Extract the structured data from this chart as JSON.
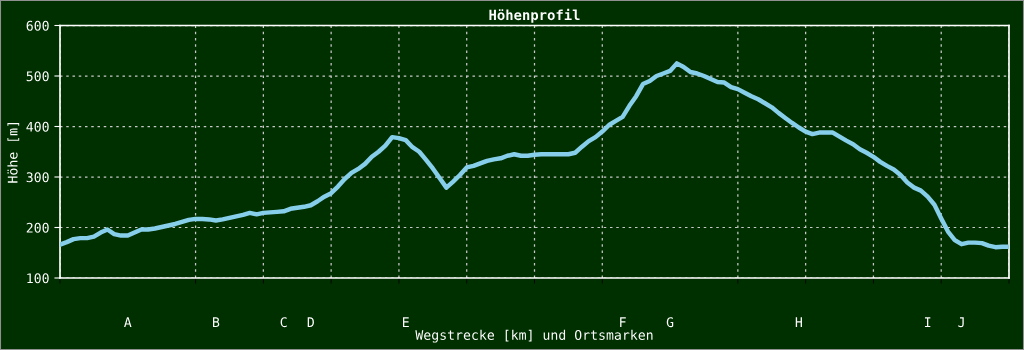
{
  "chart_data": {
    "type": "line",
    "title": "Höhenprofil",
    "xlabel": "Wegstrecke [km] und Ortsmarken",
    "ylabel": "Höhe [m]",
    "categories": [
      null,
      null,
      null,
      null,
      null,
      null,
      null,
      null,
      null,
      null,
      "A",
      null,
      null,
      null,
      null,
      null,
      null,
      null,
      null,
      null,
      null,
      null,
      null,
      "B",
      null,
      null,
      null,
      null,
      null,
      null,
      null,
      null,
      null,
      "C",
      null,
      null,
      null,
      "D",
      null,
      null,
      null,
      null,
      null,
      null,
      null,
      null,
      null,
      null,
      null,
      null,
      null,
      "E",
      null,
      null,
      null,
      null,
      null,
      null,
      null,
      null,
      null,
      null,
      null,
      null,
      null,
      null,
      null,
      null,
      null,
      null,
      null,
      null,
      null,
      null,
      null,
      null,
      null,
      null,
      null,
      null,
      null,
      null,
      null,
      "F",
      null,
      null,
      null,
      null,
      null,
      null,
      "G",
      null,
      null,
      null,
      null,
      null,
      null,
      null,
      null,
      null,
      null,
      null,
      null,
      null,
      null,
      null,
      null,
      null,
      null,
      "H",
      null,
      null,
      null,
      null,
      null,
      null,
      null,
      null,
      null,
      null,
      null,
      null,
      null,
      null,
      null,
      null,
      null,
      null,
      "I",
      null,
      null,
      null,
      null,
      "J",
      null,
      null,
      null,
      null,
      null,
      null,
      null
    ],
    "series": [
      {
        "color": "#87ceeb",
        "values": [
          166,
          171,
          177,
          179,
          179,
          182,
          190,
          196,
          187,
          184,
          184,
          190,
          196,
          196,
          198,
          201,
          204,
          207,
          211,
          215,
          217,
          217,
          216,
          214,
          216,
          219,
          222,
          225,
          229,
          226,
          229,
          230,
          231,
          232,
          237,
          239,
          241,
          244,
          252,
          261,
          268,
          281,
          296,
          308,
          316,
          326,
          340,
          350,
          362,
          379,
          377,
          373,
          359,
          350,
          334,
          317,
          298,
          279,
          291,
          304,
          319,
          322,
          327,
          332,
          335,
          337,
          342,
          345,
          342,
          342,
          344,
          345,
          345,
          345,
          345,
          345,
          348,
          360,
          371,
          379,
          390,
          403,
          411,
          419,
          441,
          460,
          484,
          490,
          500,
          505,
          510,
          525,
          518,
          508,
          505,
          500,
          494,
          488,
          487,
          478,
          474,
          467,
          460,
          454,
          446,
          438,
          427,
          417,
          407,
          398,
          390,
          385,
          388,
          388,
          388,
          380,
          372,
          365,
          355,
          348,
          340,
          330,
          322,
          315,
          304,
          289,
          279,
          273,
          261,
          245,
          218,
          192,
          175,
          167,
          170,
          170,
          169,
          164,
          161,
          162,
          162
        ]
      }
    ],
    "ylim": [
      100,
      600
    ],
    "yticks": [
      100,
      200,
      300,
      400,
      500,
      600
    ],
    "grid": true,
    "marker": "none",
    "line_style": "solid"
  }
}
